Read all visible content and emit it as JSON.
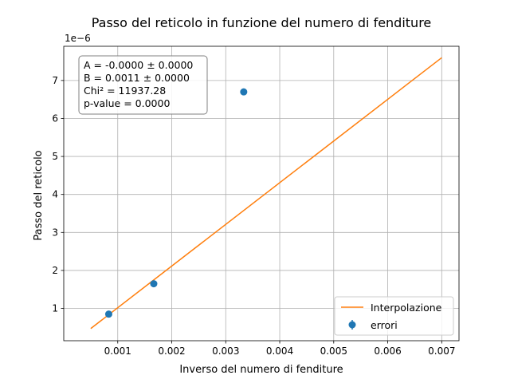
{
  "chart_data": {
    "type": "scatter",
    "title": "Passo del reticolo in funzione del numero di fenditure",
    "xlabel": "Inverso del numero di fenditure",
    "ylabel": "Passo del reticolo",
    "y_offset_label": "1e−6",
    "xlim": [
      0.0,
      0.00732
    ],
    "ylim": [
      0.15,
      7.9
    ],
    "x_ticks": [
      0.001,
      0.002,
      0.003,
      0.004,
      0.005,
      0.006,
      0.007
    ],
    "x_tick_labels": [
      "0.001",
      "0.002",
      "0.003",
      "0.004",
      "0.005",
      "0.006",
      "0.007"
    ],
    "y_ticks": [
      1,
      2,
      3,
      4,
      5,
      6,
      7
    ],
    "y_tick_labels": [
      "1",
      "2",
      "3",
      "4",
      "5",
      "6",
      "7"
    ],
    "grid": true,
    "legend_position": "lower-right",
    "series": [
      {
        "name": "errori",
        "kind": "errorbar-points",
        "color": "#1f77b4",
        "x": [
          0.000833,
          0.001667,
          0.003333
        ],
        "y": [
          0.85,
          1.65,
          6.7
        ]
      },
      {
        "name": "Interpolazione",
        "kind": "line",
        "color": "#ff7f0e",
        "x": [
          0.0005,
          0.007
        ],
        "y": [
          0.47,
          7.6
        ]
      }
    ],
    "annotation": {
      "lines": [
        "A = -0.0000 ± 0.0000",
        "B = 0.0011 ± 0.0000",
        "Chi² = 11937.28",
        "p-value = 0.0000"
      ]
    }
  }
}
